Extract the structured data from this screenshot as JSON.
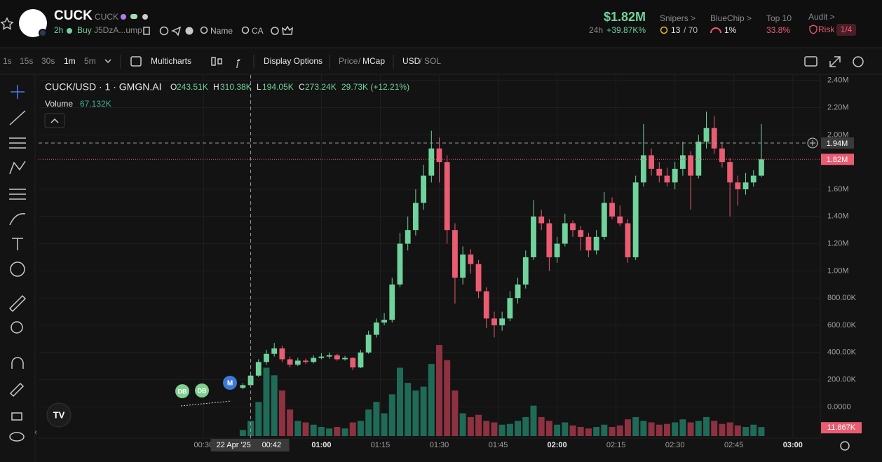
{
  "header": {
    "name": "CUCK",
    "symbol": "CUCK",
    "age": "2h",
    "buy": "Buy",
    "address": "J5DzA...ump",
    "search_name": "Name",
    "search_ca": "CA",
    "price": "$1.82M",
    "change_period": "24h",
    "change": "+39.87K%",
    "snipers_label": "Snipers >",
    "snipers_value": "13",
    "snipers_total": "/ 70",
    "bluechip_label": "BlueChip >",
    "bluechip_value": "1%",
    "top10_label": "Top 10",
    "top10_value": "33.8%",
    "audit_label": "Audit >",
    "risk_label": "Risk",
    "risk_value": "1/4"
  },
  "toolbar": {
    "intervals": [
      "1s",
      "15s",
      "30s",
      "1m",
      "5m"
    ],
    "multicharts": "Multicharts",
    "display_options": "Display Options",
    "price": "Price",
    "price_sep": "/",
    "mcap": "MCap",
    "usd": "USD",
    "currency_sep": "/",
    "sol": "SOL"
  },
  "legend": {
    "pair": "CUCK/USD · 1 · GMGN.AI",
    "o_label": "O",
    "o": "243.51K",
    "h_label": "H",
    "h": "310.38K",
    "l_label": "L",
    "l": "194.05K",
    "c_label": "C",
    "c": "273.24K",
    "change": "29.73K (+12.21%)",
    "volume_label": "Volume",
    "volume": "67.132K"
  },
  "markers": [
    "DB",
    "DB",
    "M"
  ],
  "crosshair": {
    "price": {
      "value": 1940000,
      "label": "1.94M"
    },
    "date": "22 Apr '25",
    "time": {
      "value": 42,
      "label": "00:42"
    }
  },
  "chart_data": {
    "type": "candlestick",
    "x": [
      40,
      42,
      44,
      46,
      48,
      50,
      52,
      54,
      56,
      58,
      60,
      62,
      64,
      66,
      68,
      70,
      72,
      74,
      76,
      78,
      80,
      82,
      84,
      86,
      88,
      90,
      92,
      94,
      96,
      98,
      100,
      102,
      104,
      106,
      108,
      110,
      112,
      114,
      116,
      118,
      120,
      122,
      124,
      126,
      128,
      130,
      132,
      134,
      136,
      138,
      140,
      142,
      144,
      146,
      148,
      150,
      152,
      154,
      156,
      158,
      160,
      162,
      164,
      166,
      168,
      170,
      172
    ],
    "candles": [
      [
        140000,
        175000,
        130000,
        160000
      ],
      [
        160000,
        245000,
        155000,
        230000
      ],
      [
        230000,
        350000,
        220000,
        330000
      ],
      [
        330000,
        420000,
        310000,
        390000
      ],
      [
        390000,
        470000,
        370000,
        430000
      ],
      [
        430000,
        450000,
        330000,
        350000
      ],
      [
        350000,
        370000,
        290000,
        310000
      ],
      [
        310000,
        360000,
        300000,
        340000
      ],
      [
        340000,
        355000,
        315000,
        330000
      ],
      [
        330000,
        380000,
        320000,
        360000
      ],
      [
        360000,
        395000,
        350000,
        370000
      ],
      [
        370000,
        400000,
        355000,
        380000
      ],
      [
        380000,
        390000,
        340000,
        350000
      ],
      [
        350000,
        375000,
        340000,
        360000
      ],
      [
        360000,
        365000,
        270000,
        290000
      ],
      [
        290000,
        420000,
        285000,
        400000
      ],
      [
        400000,
        560000,
        390000,
        530000
      ],
      [
        530000,
        650000,
        510000,
        620000
      ],
      [
        620000,
        690000,
        600000,
        640000
      ],
      [
        640000,
        950000,
        620000,
        900000
      ],
      [
        900000,
        1280000,
        880000,
        1200000
      ],
      [
        1200000,
        1400000,
        1150000,
        1300000
      ],
      [
        1300000,
        1600000,
        1260000,
        1500000
      ],
      [
        1500000,
        1780000,
        1450000,
        1700000
      ],
      [
        1700000,
        2030000,
        1650000,
        1900000
      ],
      [
        1900000,
        1980000,
        1650000,
        1800000
      ],
      [
        1800000,
        1850000,
        1200000,
        1300000
      ],
      [
        1300000,
        1350000,
        760000,
        950000
      ],
      [
        950000,
        1180000,
        900000,
        1120000
      ],
      [
        1120000,
        1160000,
        980000,
        1050000
      ],
      [
        1050000,
        1080000,
        800000,
        850000
      ],
      [
        850000,
        880000,
        580000,
        650000
      ],
      [
        650000,
        700000,
        510000,
        600000
      ],
      [
        600000,
        700000,
        560000,
        650000
      ],
      [
        650000,
        850000,
        630000,
        800000
      ],
      [
        800000,
        950000,
        760000,
        900000
      ],
      [
        900000,
        1150000,
        870000,
        1100000
      ],
      [
        1100000,
        1520000,
        1080000,
        1400000
      ],
      [
        1400000,
        1450000,
        1300000,
        1350000
      ],
      [
        1350000,
        1380000,
        1000000,
        1100000
      ],
      [
        1100000,
        1250000,
        1060000,
        1200000
      ],
      [
        1200000,
        1420000,
        1180000,
        1350000
      ],
      [
        1350000,
        1370000,
        1250000,
        1300000
      ],
      [
        1300000,
        1330000,
        1150000,
        1250000
      ],
      [
        1250000,
        1280000,
        1100000,
        1150000
      ],
      [
        1150000,
        1300000,
        1120000,
        1250000
      ],
      [
        1250000,
        1580000,
        1230000,
        1500000
      ],
      [
        1500000,
        1540000,
        1380000,
        1400000
      ],
      [
        1400000,
        1480000,
        1330000,
        1350000
      ],
      [
        1350000,
        1380000,
        1060000,
        1100000
      ],
      [
        1100000,
        1700000,
        1080000,
        1650000
      ],
      [
        1650000,
        2080000,
        1620000,
        1850000
      ],
      [
        1850000,
        1900000,
        1700000,
        1750000
      ],
      [
        1750000,
        1800000,
        1650000,
        1700000
      ],
      [
        1700000,
        1760000,
        1620000,
        1650000
      ],
      [
        1650000,
        1800000,
        1600000,
        1750000
      ],
      [
        1750000,
        1950000,
        1700000,
        1850000
      ],
      [
        1850000,
        1880000,
        1450000,
        1700000
      ],
      [
        1700000,
        2000000,
        1680000,
        1950000
      ],
      [
        1950000,
        2170000,
        1900000,
        2050000
      ],
      [
        2050000,
        2140000,
        1860000,
        1900000
      ],
      [
        1900000,
        1950000,
        1760000,
        1800000
      ],
      [
        1800000,
        1830000,
        1400000,
        1650000
      ],
      [
        1650000,
        1700000,
        1480000,
        1600000
      ],
      [
        1600000,
        1720000,
        1560000,
        1650000
      ],
      [
        1650000,
        1740000,
        1620000,
        1700000
      ],
      [
        1700000,
        2080000,
        1690000,
        1820000
      ]
    ],
    "volumes": [
      8000,
      20000,
      45000,
      90000,
      80000,
      60000,
      35000,
      20000,
      18000,
      15000,
      12000,
      10000,
      12000,
      10000,
      18000,
      20000,
      35000,
      45000,
      30000,
      55000,
      90000,
      70000,
      60000,
      65000,
      95000,
      120000,
      100000,
      60000,
      30000,
      25000,
      28000,
      20000,
      18000,
      15000,
      16000,
      20000,
      25000,
      40000,
      25000,
      20000,
      15000,
      18000,
      14000,
      12000,
      10000,
      12000,
      15000,
      12000,
      14000,
      22000,
      25000,
      20000,
      18000,
      15000,
      16000,
      18000,
      22000,
      18000,
      20000,
      25000,
      20000,
      16000,
      18000,
      14000,
      12000,
      15000,
      11867
    ],
    "up_color": "#6fd39b",
    "down_color": "#ea5c72",
    "volume_up_color": "#1f6b57",
    "volume_down_color": "#8e3140",
    "xlim": [
      -12,
      187
    ],
    "xticks": [
      {
        "value": 30,
        "label": "00:30"
      },
      {
        "value": 60,
        "label": "01:00"
      },
      {
        "value": 75,
        "label": "01:15"
      },
      {
        "value": 90,
        "label": "01:30"
      },
      {
        "value": 105,
        "label": "01:45"
      },
      {
        "value": 120,
        "label": "02:00"
      },
      {
        "value": 135,
        "label": "02:15"
      },
      {
        "value": 150,
        "label": "02:30"
      },
      {
        "value": 165,
        "label": "02:45"
      },
      {
        "value": 180,
        "label": "03:00"
      }
    ],
    "ylim": [
      -230000,
      2440000
    ],
    "yticks": [
      {
        "value": 2400000,
        "label": "2.40M"
      },
      {
        "value": 2200000,
        "label": "2.20M"
      },
      {
        "value": 2000000,
        "label": "2.00M"
      },
      {
        "value": 1600000,
        "label": "1.60M"
      },
      {
        "value": 1400000,
        "label": "1.40M"
      },
      {
        "value": 1200000,
        "label": "1.20M"
      },
      {
        "value": 1000000,
        "label": "1.00M"
      },
      {
        "value": 800000,
        "label": "800.00K"
      },
      {
        "value": 600000,
        "label": "600.00K"
      },
      {
        "value": 400000,
        "label": "400.00K"
      },
      {
        "value": 200000,
        "label": "200.00K"
      },
      {
        "value": 0,
        "label": "0.0000"
      }
    ],
    "grid": true,
    "current_price": {
      "value": 1820000,
      "label": "1.82M"
    },
    "volume_tag": "11.867K"
  }
}
